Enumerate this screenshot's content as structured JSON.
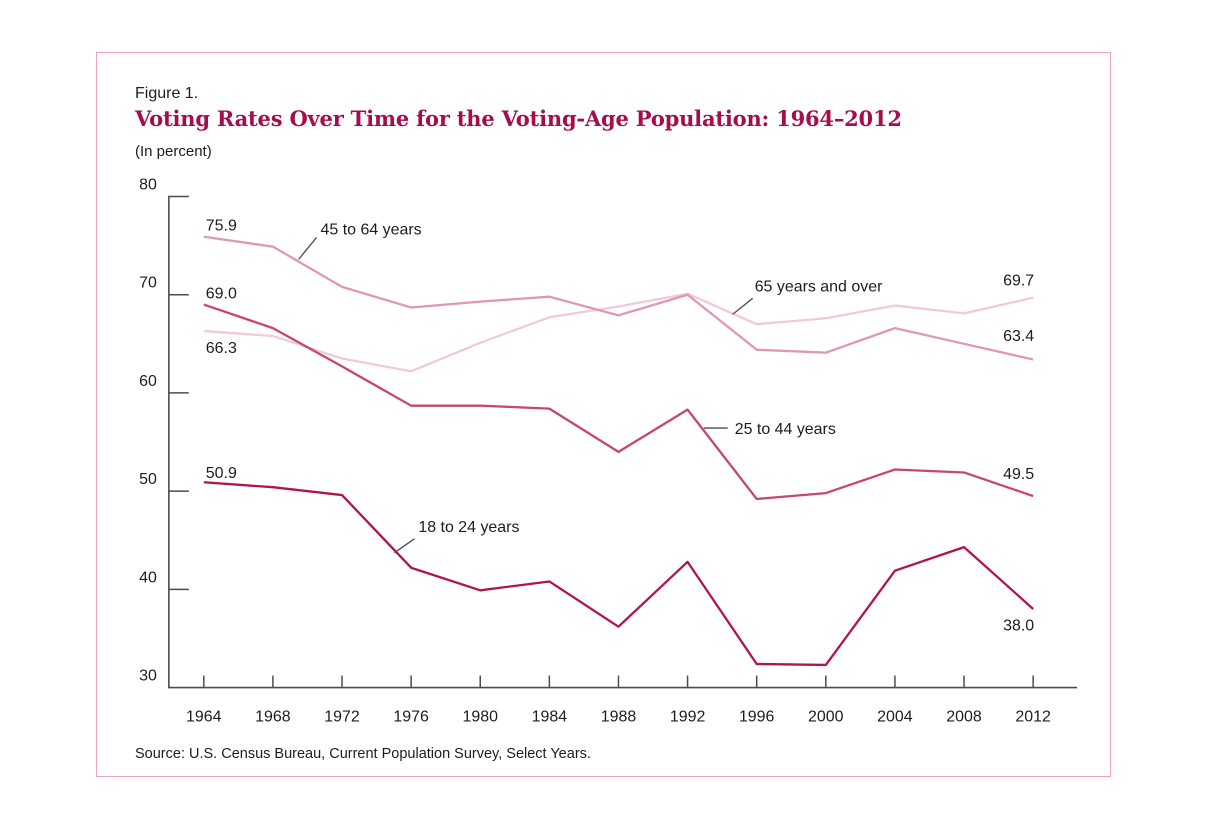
{
  "figure": {
    "label": "Figure 1.",
    "title": "Voting Rates Over Time for the Voting-Age Population: 1964–2012",
    "subtitle": "(In percent)",
    "source": "Source: U.S. Census Bureau, Current Population Survey, Select Years.",
    "title_color": "#a60d4e",
    "border_color": "#eba4c0",
    "axis_color": "#4c4c4e"
  },
  "chart_data": {
    "type": "line",
    "title": "Voting Rates Over Time for the Voting-Age Population: 1964–2012",
    "subtitle": "(In percent)",
    "xlabel": "",
    "ylabel": "",
    "ylim": [
      30,
      80
    ],
    "yticks": [
      30,
      40,
      50,
      60,
      70,
      80
    ],
    "grid": false,
    "legend_position": "inline-callouts",
    "x": [
      1964,
      1968,
      1972,
      1976,
      1980,
      1984,
      1988,
      1992,
      1996,
      2000,
      2004,
      2008,
      2012
    ],
    "series": [
      {
        "name": "65 years and over",
        "color": "#f2c9d8",
        "values": [
          66.3,
          65.8,
          63.5,
          62.2,
          65.1,
          67.7,
          68.8,
          70.1,
          67.0,
          67.6,
          68.9,
          68.1,
          69.7
        ],
        "start_label": "66.3",
        "end_label": "69.7"
      },
      {
        "name": "45 to 64 years",
        "color": "#df97b5",
        "values": [
          75.9,
          74.9,
          70.8,
          68.7,
          69.3,
          69.8,
          67.9,
          70.0,
          64.4,
          64.1,
          66.6,
          65.0,
          63.4
        ],
        "start_label": "75.9",
        "end_label": "63.4"
      },
      {
        "name": "25 to 44 years",
        "color": "#c64573",
        "values": [
          69.0,
          66.6,
          62.7,
          58.7,
          58.7,
          58.4,
          54.0,
          58.3,
          49.2,
          49.8,
          52.2,
          51.9,
          49.5
        ],
        "start_label": "69.0",
        "end_label": "49.5"
      },
      {
        "name": "18 to 24 years",
        "color": "#b01353",
        "values": [
          50.9,
          50.4,
          49.6,
          42.2,
          39.9,
          40.8,
          36.2,
          42.8,
          32.4,
          32.3,
          41.9,
          44.3,
          38.0
        ],
        "start_label": "50.9",
        "end_label": "38.0"
      }
    ],
    "annotations": [
      "45 to 64 years",
      "65 years and over",
      "25 to 44 years",
      "18 to 24 years",
      "75.9",
      "69.0",
      "66.3",
      "50.9",
      "69.7",
      "63.4",
      "49.5",
      "38.0"
    ]
  }
}
